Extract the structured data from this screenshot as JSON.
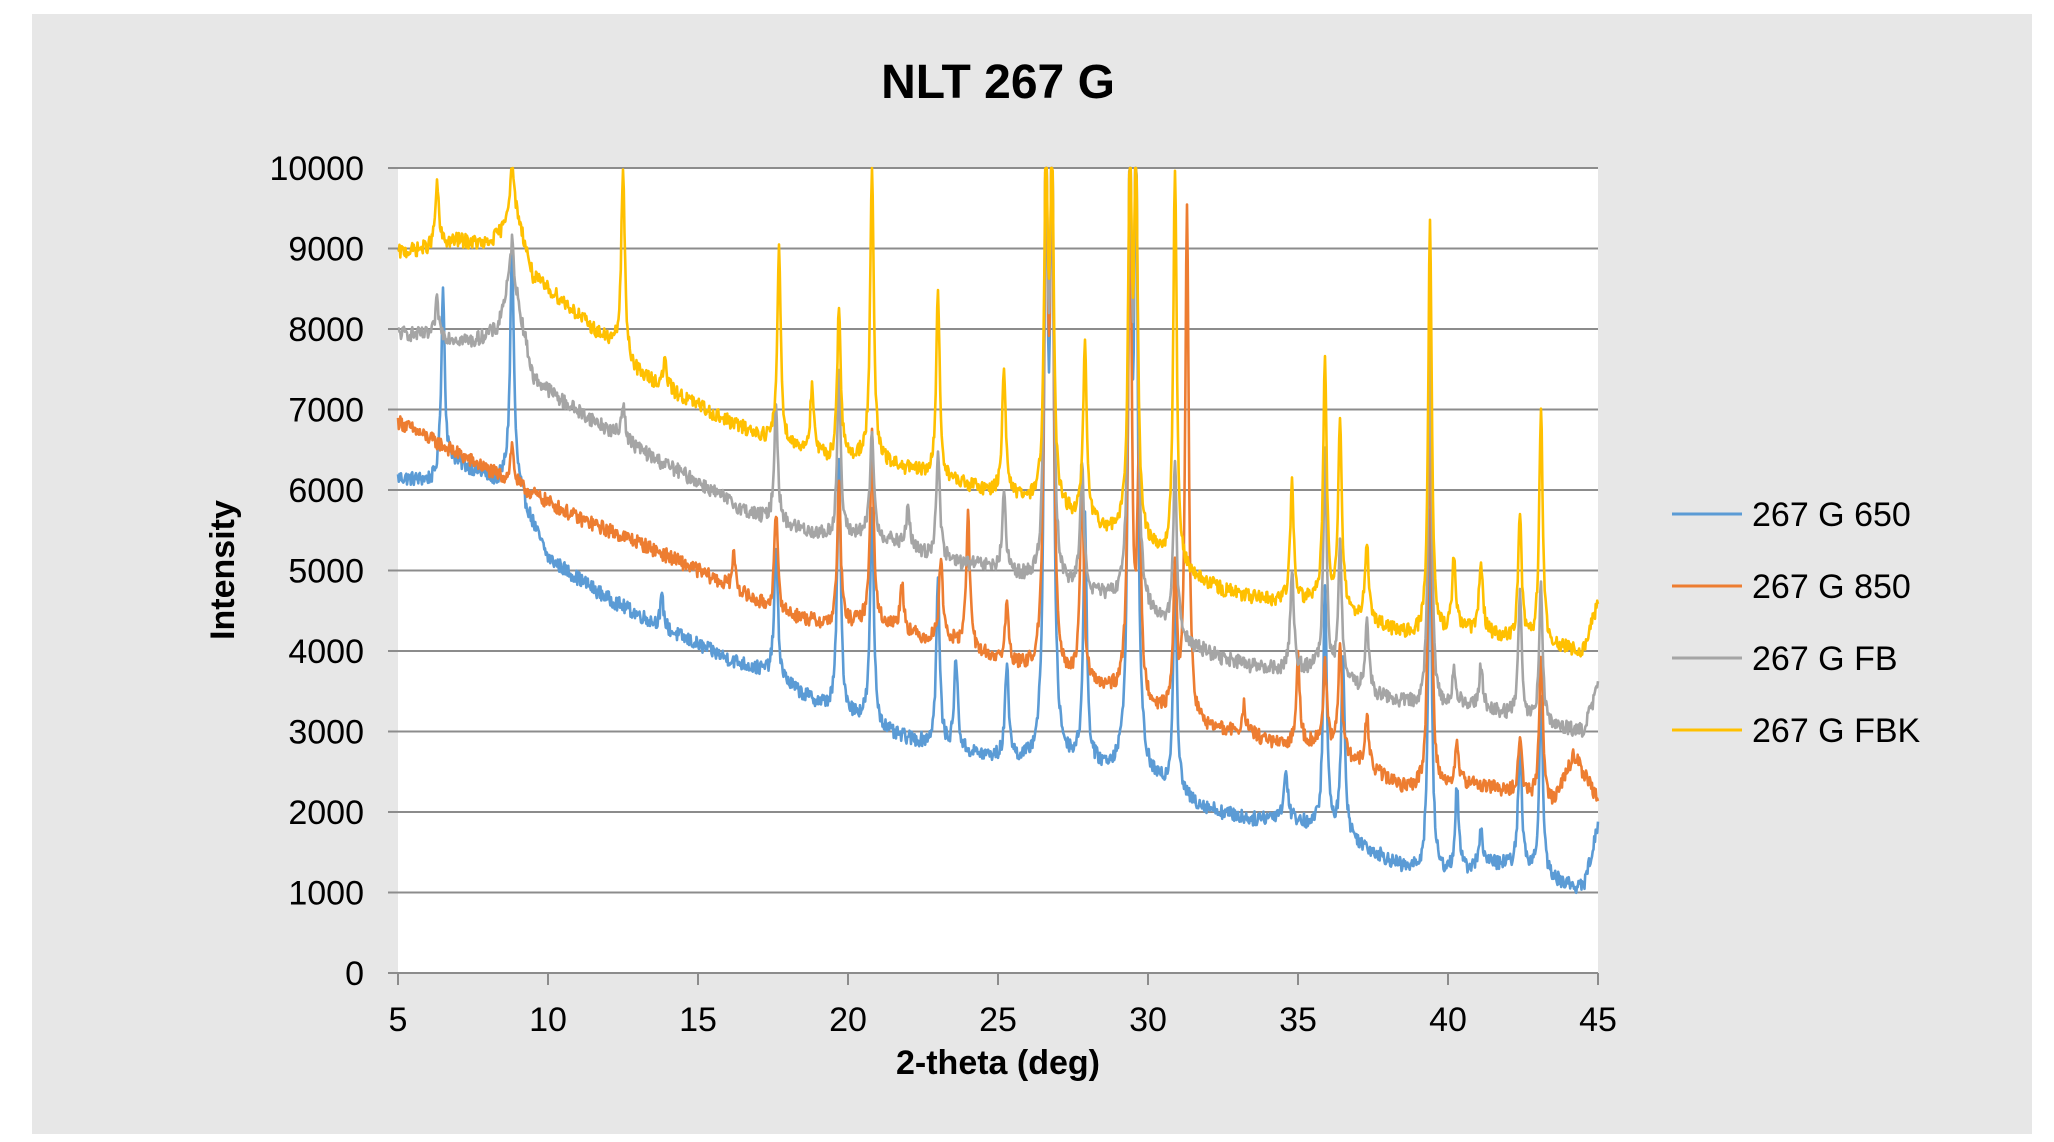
{
  "chart_data": {
    "type": "line",
    "title": "NLT 267 G",
    "xlabel": "2-theta (deg)",
    "ylabel": "Intensity",
    "xlim": [
      5,
      45
    ],
    "ylim": [
      0,
      10000
    ],
    "xticks": [
      5,
      10,
      15,
      20,
      25,
      30,
      35,
      40,
      45
    ],
    "yticks": [
      0,
      1000,
      2000,
      3000,
      4000,
      5000,
      6000,
      7000,
      8000,
      9000,
      10000
    ],
    "grid": "horizontal",
    "legend_position": "right",
    "series": [
      {
        "name": "267 G 650",
        "color": "#5b9bd5",
        "baseline": [
          [
            5,
            6150
          ],
          [
            6.2,
            6100
          ],
          [
            6.8,
            6350
          ],
          [
            7.5,
            6250
          ],
          [
            8.3,
            6100
          ],
          [
            8.8,
            6250
          ],
          [
            9.3,
            5750
          ],
          [
            10,
            5150
          ],
          [
            12,
            4650
          ],
          [
            14,
            4250
          ],
          [
            16,
            3900
          ],
          [
            17.5,
            3700
          ],
          [
            18.5,
            3450
          ],
          [
            19.5,
            3250
          ],
          [
            20.5,
            3150
          ],
          [
            21.5,
            2950
          ],
          [
            23,
            2800
          ],
          [
            24,
            2720
          ],
          [
            25,
            2650
          ],
          [
            26,
            2600
          ],
          [
            27.5,
            2600
          ],
          [
            28.5,
            2520
          ],
          [
            29.5,
            2450
          ],
          [
            30.5,
            2300
          ],
          [
            31.5,
            2100
          ],
          [
            32.5,
            1980
          ],
          [
            33.5,
            1900
          ],
          [
            34.5,
            1950
          ],
          [
            35.5,
            1800
          ],
          [
            36.5,
            1700
          ],
          [
            37.5,
            1500
          ],
          [
            38.5,
            1300
          ],
          [
            39.5,
            1200
          ],
          [
            40.5,
            1250
          ],
          [
            41.5,
            1350
          ],
          [
            42.5,
            1300
          ],
          [
            43.5,
            1150
          ],
          [
            44.5,
            1050
          ],
          [
            45,
            1800
          ]
        ],
        "peaks": [
          [
            6.5,
            8500
          ],
          [
            8.8,
            9000
          ],
          [
            13.8,
            4650
          ],
          [
            17.6,
            5300
          ],
          [
            19.7,
            6350
          ],
          [
            20.8,
            5800
          ],
          [
            23.0,
            4850
          ],
          [
            23.6,
            3900
          ],
          [
            25.3,
            3850
          ],
          [
            26.6,
            10000
          ],
          [
            26.8,
            10000
          ],
          [
            27.9,
            5600
          ],
          [
            29.4,
            10000
          ],
          [
            29.6,
            10000
          ],
          [
            30.9,
            5000
          ],
          [
            34.6,
            2500
          ],
          [
            35.9,
            4800
          ],
          [
            36.5,
            3950
          ],
          [
            39.4,
            5800
          ],
          [
            40.3,
            2300
          ],
          [
            41.1,
            1800
          ],
          [
            42.4,
            2850
          ],
          [
            43.1,
            3450
          ]
        ]
      },
      {
        "name": "267 G 850",
        "color": "#ed7d31",
        "baseline": [
          [
            5,
            6850
          ],
          [
            6,
            6650
          ],
          [
            7,
            6450
          ],
          [
            8,
            6250
          ],
          [
            8.5,
            6150
          ],
          [
            9.5,
            5950
          ],
          [
            11,
            5650
          ],
          [
            13,
            5350
          ],
          [
            15,
            5000
          ],
          [
            16.5,
            4700
          ],
          [
            17.5,
            4500
          ],
          [
            18.5,
            4400
          ],
          [
            19.5,
            4300
          ],
          [
            20.5,
            4350
          ],
          [
            21.5,
            4300
          ],
          [
            22.5,
            4150
          ],
          [
            23.5,
            4100
          ],
          [
            24.5,
            3950
          ],
          [
            25.5,
            3800
          ],
          [
            26.5,
            3700
          ],
          [
            27.5,
            3600
          ],
          [
            28.5,
            3500
          ],
          [
            29.5,
            3400
          ],
          [
            30.5,
            3200
          ],
          [
            31.5,
            3050
          ],
          [
            32.5,
            3000
          ],
          [
            33.5,
            2950
          ],
          [
            34.5,
            2800
          ],
          [
            35.5,
            2850
          ],
          [
            36.5,
            2700
          ],
          [
            37.5,
            2500
          ],
          [
            38.5,
            2300
          ],
          [
            39.5,
            2250
          ],
          [
            40.5,
            2350
          ],
          [
            41.5,
            2300
          ],
          [
            42.5,
            2200
          ],
          [
            43.5,
            2100
          ],
          [
            44.2,
            2700
          ],
          [
            45,
            2150
          ]
        ],
        "peaks": [
          [
            8.8,
            6550
          ],
          [
            16.2,
            5200
          ],
          [
            17.6,
            5700
          ],
          [
            19.7,
            6050
          ],
          [
            20.8,
            6700
          ],
          [
            21.8,
            4850
          ],
          [
            23.1,
            5200
          ],
          [
            24.0,
            5700
          ],
          [
            25.3,
            4550
          ],
          [
            26.6,
            10000
          ],
          [
            26.8,
            10000
          ],
          [
            27.8,
            6150
          ],
          [
            29.4,
            10000
          ],
          [
            29.7,
            6200
          ],
          [
            30.9,
            5000
          ],
          [
            31.3,
            9500
          ],
          [
            33.2,
            3300
          ],
          [
            35.0,
            3950
          ],
          [
            35.9,
            3850
          ],
          [
            36.4,
            4100
          ],
          [
            37.3,
            3200
          ],
          [
            39.4,
            7200
          ],
          [
            40.3,
            2800
          ],
          [
            42.4,
            2950
          ],
          [
            43.1,
            4000
          ]
        ]
      },
      {
        "name": "267 G FB",
        "color": "#a5a5a5",
        "baseline": [
          [
            5,
            7950
          ],
          [
            6.5,
            7900
          ],
          [
            7.5,
            7850
          ],
          [
            8.3,
            8000
          ],
          [
            8.8,
            8700
          ],
          [
            9.5,
            7400
          ],
          [
            10.5,
            7100
          ],
          [
            12,
            6750
          ],
          [
            13.5,
            6400
          ],
          [
            15,
            6100
          ],
          [
            16.5,
            5750
          ],
          [
            17.5,
            5600
          ],
          [
            18.5,
            5500
          ],
          [
            19.5,
            5400
          ],
          [
            20.5,
            5450
          ],
          [
            21.5,
            5350
          ],
          [
            22.5,
            5200
          ],
          [
            23.5,
            5100
          ],
          [
            24.5,
            5050
          ],
          [
            25.5,
            4950
          ],
          [
            26.5,
            4800
          ],
          [
            27.5,
            4750
          ],
          [
            28.5,
            4650
          ],
          [
            29.5,
            4550
          ],
          [
            30.5,
            4350
          ],
          [
            31.5,
            4050
          ],
          [
            32.5,
            3900
          ],
          [
            33.5,
            3800
          ],
          [
            34.5,
            3750
          ],
          [
            35.5,
            3750
          ],
          [
            36.5,
            3600
          ],
          [
            37.5,
            3450
          ],
          [
            38.5,
            3350
          ],
          [
            39.5,
            3250
          ],
          [
            40.5,
            3350
          ],
          [
            41.5,
            3250
          ],
          [
            42.5,
            3150
          ],
          [
            43.5,
            3050
          ],
          [
            44.5,
            3000
          ],
          [
            45,
            3550
          ]
        ],
        "peaks": [
          [
            6.3,
            8350
          ],
          [
            8.8,
            9100
          ],
          [
            12.5,
            7100
          ],
          [
            17.6,
            7100
          ],
          [
            19.7,
            7400
          ],
          [
            20.8,
            6750
          ],
          [
            22.0,
            5800
          ],
          [
            23.0,
            6500
          ],
          [
            25.2,
            5900
          ],
          [
            26.6,
            10000
          ],
          [
            26.8,
            10000
          ],
          [
            27.8,
            6350
          ],
          [
            29.4,
            10000
          ],
          [
            29.6,
            10000
          ],
          [
            30.9,
            6300
          ],
          [
            34.8,
            5000
          ],
          [
            35.9,
            6400
          ],
          [
            36.4,
            5300
          ],
          [
            37.3,
            4400
          ],
          [
            39.4,
            8000
          ],
          [
            40.2,
            3700
          ],
          [
            41.1,
            3800
          ],
          [
            42.4,
            4700
          ],
          [
            43.1,
            4800
          ]
        ]
      },
      {
        "name": "267 G FBK",
        "color": "#ffc000",
        "baseline": [
          [
            5,
            8950
          ],
          [
            6,
            9000
          ],
          [
            7,
            9100
          ],
          [
            8,
            9050
          ],
          [
            8.5,
            9250
          ],
          [
            8.8,
            9700
          ],
          [
            9.5,
            8650
          ],
          [
            10.5,
            8350
          ],
          [
            11.5,
            8000
          ],
          [
            12.2,
            7800
          ],
          [
            13,
            7450
          ],
          [
            14.5,
            7150
          ],
          [
            16,
            6850
          ],
          [
            17.5,
            6600
          ],
          [
            18.5,
            6500
          ],
          [
            19.5,
            6350
          ],
          [
            20.5,
            6400
          ],
          [
            21.5,
            6300
          ],
          [
            22.5,
            6200
          ],
          [
            23.5,
            6100
          ],
          [
            24.5,
            6000
          ],
          [
            25.5,
            5900
          ],
          [
            26.5,
            5800
          ],
          [
            27.5,
            5650
          ],
          [
            28.5,
            5500
          ],
          [
            29.5,
            5400
          ],
          [
            30.5,
            5150
          ],
          [
            31.5,
            4900
          ],
          [
            32.5,
            4750
          ],
          [
            33.5,
            4650
          ],
          [
            34.5,
            4600
          ],
          [
            35.5,
            4600
          ],
          [
            36.5,
            4500
          ],
          [
            37.5,
            4350
          ],
          [
            38.5,
            4200
          ],
          [
            39.5,
            4150
          ],
          [
            40.5,
            4250
          ],
          [
            41.5,
            4200
          ],
          [
            42.5,
            4100
          ],
          [
            43.5,
            4050
          ],
          [
            44.5,
            4000
          ],
          [
            45,
            4600
          ]
        ],
        "peaks": [
          [
            6.3,
            9800
          ],
          [
            8.8,
            10000
          ],
          [
            12.5,
            10000
          ],
          [
            13.9,
            7600
          ],
          [
            17.7,
            9000
          ],
          [
            18.8,
            7250
          ],
          [
            19.7,
            8300
          ],
          [
            20.8,
            10000
          ],
          [
            23.0,
            8450
          ],
          [
            25.2,
            7550
          ],
          [
            26.6,
            10000
          ],
          [
            26.8,
            10000
          ],
          [
            27.9,
            7800
          ],
          [
            29.4,
            10000
          ],
          [
            29.6,
            10000
          ],
          [
            30.9,
            10000
          ],
          [
            34.8,
            6100
          ],
          [
            35.9,
            7650
          ],
          [
            36.4,
            6900
          ],
          [
            37.3,
            5300
          ],
          [
            39.4,
            9400
          ],
          [
            40.2,
            5150
          ],
          [
            41.1,
            5150
          ],
          [
            42.4,
            5700
          ],
          [
            43.1,
            7000
          ]
        ]
      }
    ]
  }
}
